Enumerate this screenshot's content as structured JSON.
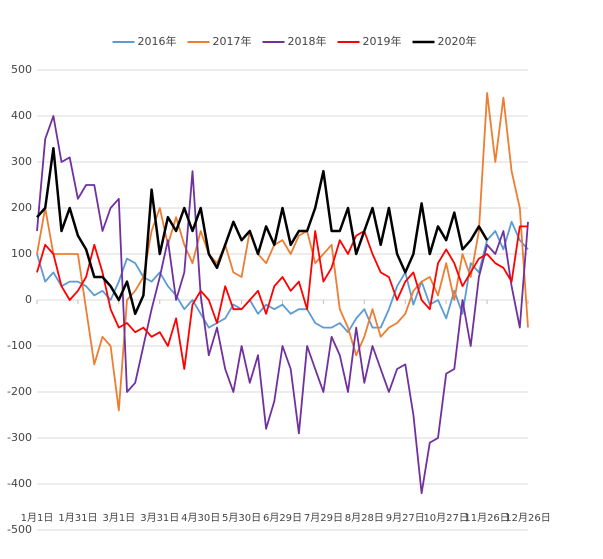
{
  "chart_data": {
    "type": "line",
    "x": [
      0,
      6,
      12,
      18,
      24,
      30,
      36,
      42,
      48,
      54,
      60,
      66,
      72,
      78,
      84,
      90,
      96,
      102,
      108,
      114,
      120,
      126,
      132,
      138,
      144,
      150,
      156,
      162,
      168,
      174,
      180,
      186,
      192,
      198,
      204,
      210,
      216,
      222,
      228,
      234,
      240,
      246,
      252,
      258,
      264,
      270,
      276,
      282,
      288,
      294,
      300,
      306,
      312,
      318,
      324,
      330,
      336,
      342,
      348,
      354,
      360
    ],
    "xlim": [
      0,
      360
    ],
    "xticks": [
      {
        "value": 0,
        "label": "1月1日"
      },
      {
        "value": 30,
        "label": "1月31日"
      },
      {
        "value": 60,
        "label": "3月1日"
      },
      {
        "value": 90,
        "label": "3月31日"
      },
      {
        "value": 120,
        "label": "4月30日"
      },
      {
        "value": 150,
        "label": "5月30日"
      },
      {
        "value": 180,
        "label": "6月29日"
      },
      {
        "value": 210,
        "label": "7月29日"
      },
      {
        "value": 240,
        "label": "8月28日"
      },
      {
        "value": 270,
        "label": "9月27日"
      },
      {
        "value": 300,
        "label": "10月27日"
      },
      {
        "value": 330,
        "label": "11月26日"
      },
      {
        "value": 360,
        "label": "12月26日"
      }
    ],
    "ylim": [
      -500,
      500
    ],
    "yticks": [
      -500,
      -400,
      -300,
      -200,
      -100,
      0,
      100,
      200,
      300,
      400,
      500
    ],
    "grid": true,
    "legend": "top",
    "series": [
      {
        "name": "2016年",
        "color": "#5b9bd5",
        "values": [
          100,
          40,
          60,
          30,
          40,
          40,
          30,
          10,
          20,
          0,
          40,
          90,
          80,
          50,
          40,
          60,
          30,
          10,
          -20,
          0,
          -30,
          -60,
          -50,
          -40,
          -10,
          -20,
          0,
          -30,
          -10,
          -20,
          -10,
          -30,
          -20,
          -20,
          -50,
          -60,
          -60,
          -50,
          -70,
          -40,
          -20,
          -60,
          -60,
          -20,
          30,
          60,
          -10,
          40,
          -10,
          0,
          -40,
          20,
          -30,
          80,
          60,
          130,
          150,
          110,
          170,
          130,
          110
        ]
      },
      {
        "name": "2017年",
        "color": "#ed7d31",
        "values": [
          100,
          200,
          100,
          100,
          100,
          100,
          -20,
          -140,
          -80,
          -100,
          -240,
          0,
          20,
          50,
          150,
          200,
          120,
          180,
          120,
          80,
          150,
          100,
          80,
          120,
          60,
          50,
          150,
          100,
          80,
          120,
          130,
          100,
          140,
          150,
          80,
          100,
          120,
          -20,
          -60,
          -120,
          -80,
          -20,
          -80,
          -60,
          -50,
          -30,
          20,
          40,
          50,
          10,
          80,
          0,
          100,
          50,
          150,
          450,
          300,
          440,
          280,
          200,
          -60
        ]
      },
      {
        "name": "2018年",
        "color": "#7030a0",
        "values": [
          150,
          350,
          400,
          300,
          310,
          220,
          250,
          250,
          150,
          200,
          220,
          -200,
          -180,
          -100,
          -20,
          50,
          130,
          0,
          60,
          280,
          10,
          -120,
          -60,
          -150,
          -200,
          -100,
          -180,
          -120,
          -280,
          -220,
          -100,
          -150,
          -290,
          -100,
          -150,
          -200,
          -80,
          -120,
          -200,
          -60,
          -180,
          -100,
          -150,
          -200,
          -150,
          -140,
          -250,
          -420,
          -310,
          -300,
          -160,
          -150,
          0,
          -100,
          50,
          120,
          100,
          150,
          30,
          -60,
          170
        ]
      },
      {
        "name": "2019年",
        "color": "#ff0000",
        "values": [
          60,
          120,
          100,
          30,
          0,
          20,
          50,
          120,
          60,
          -20,
          -60,
          -50,
          -70,
          -60,
          -80,
          -70,
          -100,
          -40,
          -150,
          -10,
          20,
          0,
          -50,
          30,
          -20,
          -20,
          0,
          20,
          -30,
          30,
          50,
          20,
          40,
          -20,
          150,
          40,
          70,
          130,
          100,
          140,
          150,
          100,
          60,
          50,
          0,
          40,
          60,
          0,
          -20,
          80,
          110,
          80,
          30,
          60,
          90,
          100,
          80,
          70,
          40,
          160,
          160
        ]
      },
      {
        "name": "2020年",
        "color": "#000000",
        "values": [
          180,
          200,
          330,
          150,
          200,
          140,
          110,
          50,
          50,
          30,
          0,
          40,
          -30,
          10,
          240,
          100,
          180,
          150,
          200,
          150,
          200,
          100,
          70,
          120,
          170,
          130,
          150,
          100,
          160,
          120,
          200,
          120,
          150,
          150,
          200,
          280,
          150,
          150,
          200,
          100,
          150,
          200,
          120,
          200,
          100,
          60,
          100,
          210,
          100,
          160,
          130,
          190,
          110,
          130,
          160,
          130,
          null,
          null,
          null,
          null,
          null
        ]
      }
    ]
  }
}
